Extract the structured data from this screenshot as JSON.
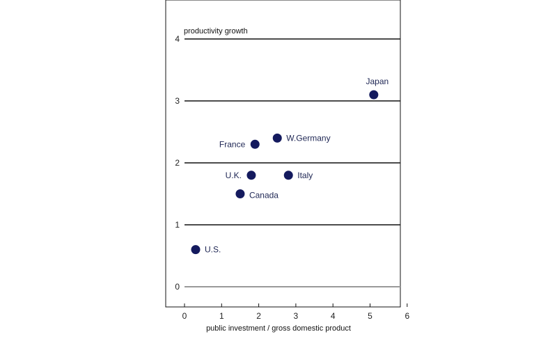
{
  "chart_data": {
    "type": "scatter",
    "xlabel": "public investment / gross domestic product",
    "ylabel": "productivity growth",
    "xlim": [
      -0.2,
      7.0
    ],
    "ylim": [
      -0.3,
      4.0
    ],
    "xticks": [
      0,
      1,
      2,
      3,
      4,
      5,
      6
    ],
    "yticks": [
      0,
      1,
      2,
      3,
      4
    ],
    "grid": "horizontal",
    "point_color": "#141a5e",
    "points": [
      {
        "label": "Japan",
        "x": 5.1,
        "y": 3.1,
        "label_pos": "above"
      },
      {
        "label": "W.Germany",
        "x": 2.5,
        "y": 2.4,
        "label_pos": "right"
      },
      {
        "label": "France",
        "x": 1.9,
        "y": 2.3,
        "label_pos": "left"
      },
      {
        "label": "U.K.",
        "x": 1.8,
        "y": 1.8,
        "label_pos": "left"
      },
      {
        "label": "Italy",
        "x": 2.8,
        "y": 1.8,
        "label_pos": "right"
      },
      {
        "label": "Canada",
        "x": 1.5,
        "y": 1.5,
        "label_pos": "right-below"
      },
      {
        "label": "U.S.",
        "x": 0.3,
        "y": 0.6,
        "label_pos": "right"
      }
    ]
  }
}
